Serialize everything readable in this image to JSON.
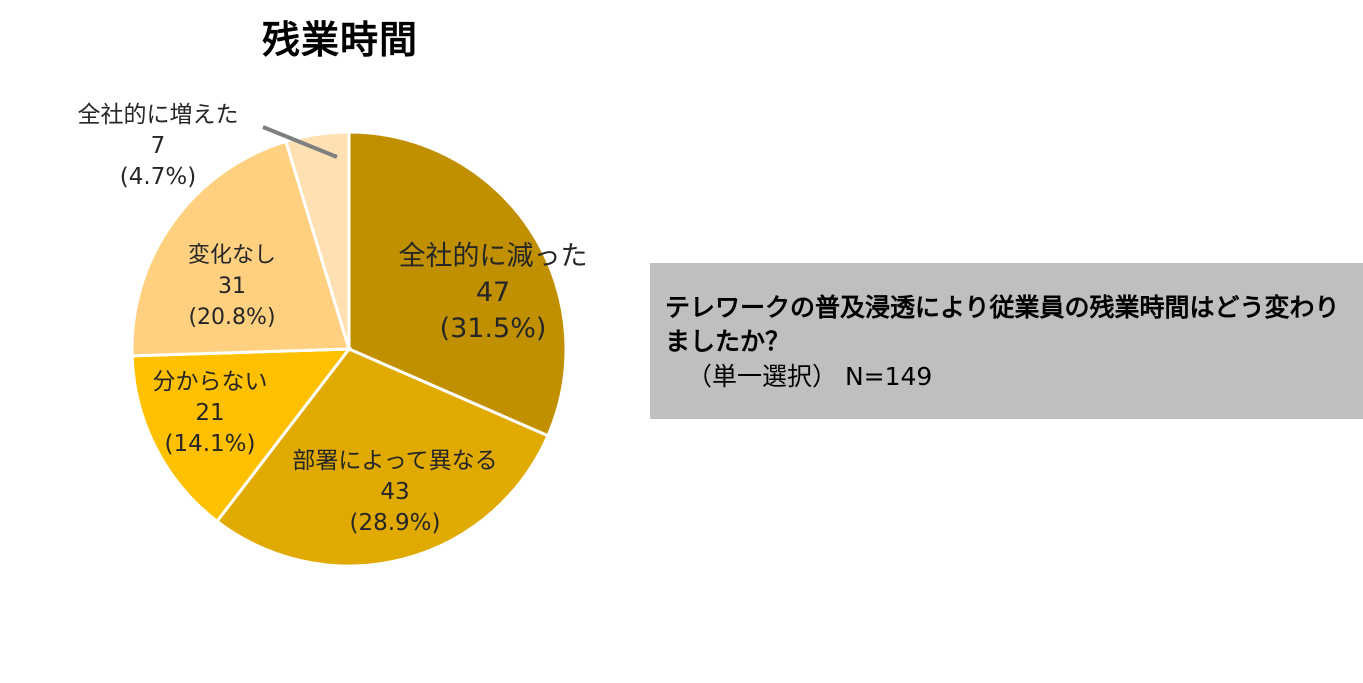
{
  "chart_data": {
    "type": "pie",
    "title": "残業時間",
    "start_angle_deg": 0,
    "direction": "clockwise",
    "slices": [
      {
        "label": "全社的に減った",
        "value": 47,
        "percent": "(31.5%)",
        "color": "#C09000"
      },
      {
        "label": "部署によって異なる",
        "value": 43,
        "percent": "(28.9%)",
        "color": "#E0AA00"
      },
      {
        "label": "分からない",
        "value": 21,
        "percent": "(14.1%)",
        "color": "#FFC000"
      },
      {
        "label": "変化なし",
        "value": 31,
        "percent": "(20.8%)",
        "color": "#FFD080"
      },
      {
        "label": "全社的に増えた",
        "value": 7,
        "percent": "(4.7%)",
        "color": "#FFE0B2"
      }
    ]
  },
  "question": {
    "text": "テレワークの普及浸透により従業員の残業時間はどう変わりましたか？",
    "sub": "（単一選択）  N=149"
  },
  "colors": {
    "background": "#ffffff",
    "question_box": "#bfbfbf",
    "leader_line": "#7f7f7f"
  }
}
